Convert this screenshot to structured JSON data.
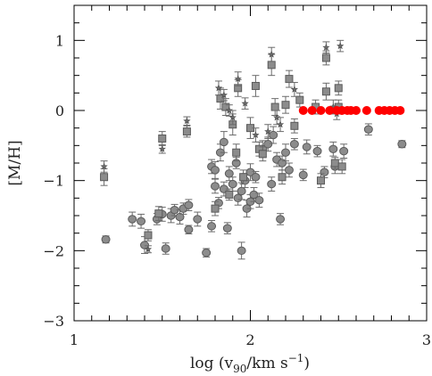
{
  "chart_data": {
    "type": "scatter",
    "title": "",
    "xlabel_main": "log (v",
    "xlabel_sub": "90",
    "xlabel_mid": "/km s",
    "xlabel_sup": "−1",
    "xlabel_end": ")",
    "ylabel": "[M/H]",
    "xlim": [
      1.0,
      3.0
    ],
    "ylim": [
      -3.0,
      1.5
    ],
    "x_ticks": [
      "1",
      "2",
      "3"
    ],
    "y_ticks": [
      "1",
      "0",
      "−1",
      "−2",
      "−3"
    ],
    "x_tick_values": [
      1,
      2,
      3
    ],
    "y_tick_values": [
      1,
      0,
      -1,
      -2,
      -3
    ],
    "grid": false,
    "colors": {
      "gray_marker": "#8c8c8c",
      "gray_edge": "#5a5a5a",
      "red_marker": "#ff0000"
    },
    "series": [
      {
        "marker": "circle",
        "points": [
          [
            1.18,
            -1.84,
            0.05
          ],
          [
            1.33,
            -1.55,
            0.1
          ],
          [
            1.38,
            -1.58,
            0.1
          ],
          [
            1.4,
            -1.92,
            0.12
          ],
          [
            1.47,
            -1.55,
            0.08
          ],
          [
            1.5,
            -1.48,
            0.1
          ],
          [
            1.52,
            -1.97,
            0.08
          ],
          [
            1.55,
            -1.5,
            0.1
          ],
          [
            1.57,
            -1.42,
            0.08
          ],
          [
            1.6,
            -1.52,
            0.1
          ],
          [
            1.62,
            -1.4,
            0.08
          ],
          [
            1.65,
            -1.7,
            0.06
          ],
          [
            1.65,
            -1.35,
            0.08
          ],
          [
            1.7,
            -1.55,
            0.1
          ],
          [
            1.75,
            -2.03,
            0.06
          ],
          [
            1.78,
            -1.65,
            0.08
          ],
          [
            1.78,
            -0.8,
            0.1
          ],
          [
            1.8,
            -0.85,
            0.12
          ],
          [
            1.8,
            -1.08,
            0.1
          ],
          [
            1.82,
            -1.32,
            0.08
          ],
          [
            1.83,
            -0.6,
            0.12
          ],
          [
            1.85,
            -0.45,
            0.15
          ],
          [
            1.85,
            -1.12,
            0.1
          ],
          [
            1.87,
            -1.68,
            0.08
          ],
          [
            1.88,
            -0.9,
            0.1
          ],
          [
            1.9,
            -1.05,
            0.1
          ],
          [
            1.92,
            -0.75,
            0.08
          ],
          [
            1.93,
            -1.25,
            0.1
          ],
          [
            1.95,
            -1.15,
            0.12
          ],
          [
            1.95,
            -2.0,
            0.12
          ],
          [
            1.97,
            -1.0,
            0.1
          ],
          [
            1.98,
            -1.4,
            0.12
          ],
          [
            2.0,
            -0.88,
            0.12
          ],
          [
            2.0,
            -1.3,
            0.1
          ],
          [
            2.02,
            -1.2,
            0.1
          ],
          [
            2.03,
            -0.95,
            0.08
          ],
          [
            2.05,
            -1.28,
            0.1
          ],
          [
            2.07,
            -0.55,
            0.12
          ],
          [
            2.1,
            -0.48,
            0.1
          ],
          [
            2.12,
            -1.05,
            0.1
          ],
          [
            2.13,
            -0.35,
            0.12
          ],
          [
            2.15,
            -0.7,
            0.1
          ],
          [
            2.17,
            -1.55,
            0.08
          ],
          [
            2.18,
            -0.75,
            0.1
          ],
          [
            2.2,
            -0.6,
            0.12
          ],
          [
            2.22,
            -0.85,
            0.1
          ],
          [
            2.25,
            -0.48,
            0.08
          ],
          [
            2.3,
            -0.92,
            0.08
          ],
          [
            2.32,
            -0.52,
            0.1
          ],
          [
            2.38,
            -0.58,
            0.08
          ],
          [
            2.42,
            -0.88,
            0.08
          ],
          [
            2.47,
            -0.55,
            0.1
          ],
          [
            2.48,
            -0.8,
            0.1
          ],
          [
            2.53,
            -0.58,
            0.1
          ],
          [
            2.67,
            -0.27,
            0.08
          ],
          [
            2.86,
            -0.48,
            0.05
          ]
        ]
      },
      {
        "marker": "square",
        "points": [
          [
            1.17,
            -0.95,
            0.12
          ],
          [
            1.42,
            -1.78,
            0.08
          ],
          [
            1.48,
            -1.47,
            0.1
          ],
          [
            1.5,
            -0.4,
            0.1
          ],
          [
            1.64,
            -0.3,
            0.08
          ],
          [
            1.8,
            -1.4,
            0.1
          ],
          [
            1.83,
            0.17,
            0.15
          ],
          [
            1.86,
            0.05,
            0.12
          ],
          [
            1.88,
            -1.2,
            0.08
          ],
          [
            1.9,
            -0.2,
            0.15
          ],
          [
            1.92,
            -0.6,
            0.12
          ],
          [
            1.93,
            0.32,
            0.12
          ],
          [
            1.96,
            -0.95,
            0.1
          ],
          [
            2.0,
            -0.25,
            0.15
          ],
          [
            2.03,
            0.35,
            0.15
          ],
          [
            2.05,
            -0.55,
            0.1
          ],
          [
            2.07,
            -0.62,
            0.1
          ],
          [
            2.12,
            0.65,
            0.15
          ],
          [
            2.14,
            0.05,
            0.12
          ],
          [
            2.18,
            -0.95,
            0.1
          ],
          [
            2.2,
            0.08,
            0.12
          ],
          [
            2.22,
            0.45,
            0.12
          ],
          [
            2.25,
            -0.22,
            0.1
          ],
          [
            2.28,
            0.15,
            0.1
          ],
          [
            2.37,
            0.05,
            0.1
          ],
          [
            2.4,
            -1.0,
            0.1
          ],
          [
            2.43,
            0.27,
            0.12
          ],
          [
            2.43,
            0.75,
            0.1
          ],
          [
            2.48,
            -0.75,
            0.08
          ],
          [
            2.5,
            0.05,
            0.1
          ],
          [
            2.5,
            0.32,
            0.1
          ],
          [
            2.52,
            -0.8,
            0.1
          ]
        ]
      },
      {
        "marker": "star",
        "points": [
          [
            1.17,
            -0.8,
            0.08
          ],
          [
            1.42,
            -1.98,
            0.05
          ],
          [
            1.5,
            -0.55,
            0.06
          ],
          [
            1.64,
            -0.15,
            0.06
          ],
          [
            1.82,
            0.32,
            0.1
          ],
          [
            1.85,
            0.22,
            0.08
          ],
          [
            1.88,
            0.0,
            0.08
          ],
          [
            1.9,
            -0.1,
            0.1
          ],
          [
            1.93,
            0.45,
            0.1
          ],
          [
            1.97,
            0.1,
            0.08
          ],
          [
            2.03,
            -0.35,
            0.1
          ],
          [
            2.1,
            -0.3,
            0.1
          ],
          [
            2.12,
            0.8,
            0.1
          ],
          [
            2.15,
            -0.1,
            0.1
          ],
          [
            2.17,
            -0.2,
            0.1
          ],
          [
            2.25,
            0.3,
            0.1
          ],
          [
            2.43,
            0.9,
            0.08
          ],
          [
            2.47,
            0.05,
            0.1
          ],
          [
            2.49,
            -0.05,
            0.08
          ],
          [
            2.51,
            0.92,
            0.08
          ]
        ]
      },
      {
        "marker": "red-circle",
        "points": [
          [
            2.3,
            0.0,
            0
          ],
          [
            2.35,
            0.0,
            0
          ],
          [
            2.4,
            0.0,
            0
          ],
          [
            2.45,
            0.0,
            0
          ],
          [
            2.49,
            0.0,
            0
          ],
          [
            2.52,
            0.0,
            0
          ],
          [
            2.55,
            0.0,
            0
          ],
          [
            2.57,
            0.0,
            0
          ],
          [
            2.6,
            0.0,
            0
          ],
          [
            2.66,
            0.0,
            0
          ],
          [
            2.73,
            0.0,
            0
          ],
          [
            2.76,
            0.0,
            0
          ],
          [
            2.79,
            0.0,
            0
          ],
          [
            2.82,
            0.0,
            0
          ],
          [
            2.85,
            0.0,
            0
          ]
        ]
      }
    ]
  }
}
